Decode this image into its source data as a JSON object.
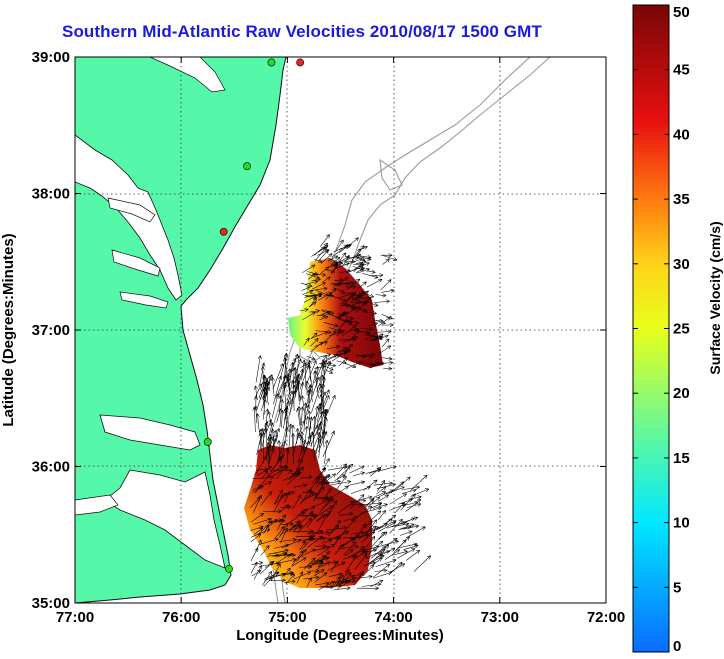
{
  "title": "Southern Mid-Atlantic Raw Velocities 2010/08/17 1500 GMT",
  "x_axis": {
    "label": "Longitude (Degrees:Minutes)",
    "ticks": [
      "77:00",
      "76:00",
      "75:00",
      "74:00",
      "73:00",
      "72:00"
    ]
  },
  "y_axis": {
    "label": "Latitude (Degrees:Minutes)",
    "ticks": [
      "35:00",
      "36:00",
      "37:00",
      "38:00",
      "39:00"
    ]
  },
  "colorbar": {
    "label": "Surface Velocity (cm/s)",
    "ticks": [
      "0",
      "5",
      "10",
      "15",
      "20",
      "25",
      "30",
      "35",
      "40",
      "45",
      "50"
    ]
  },
  "colors": {
    "land": "#55f7a8",
    "coastline": "#111111",
    "bathymetry": "#9a9a9a",
    "title": "#1a1adf",
    "station_green": "#22dd22",
    "station_red": "#ee2222"
  },
  "map_extent": {
    "lon": [
      -77,
      -72
    ],
    "lat": [
      35,
      39
    ]
  },
  "grid": true,
  "stations": [
    {
      "lon": -74.88,
      "lat": 38.96,
      "status": "red"
    },
    {
      "lon": -75.15,
      "lat": 38.96,
      "status": "green"
    },
    {
      "lon": -75.38,
      "lat": 38.2,
      "status": "green"
    },
    {
      "lon": -75.6,
      "lat": 37.72,
      "status": "red"
    },
    {
      "lon": -75.75,
      "lat": 36.18,
      "status": "green"
    },
    {
      "lon": -75.55,
      "lat": 35.25,
      "status": "green"
    }
  ]
}
